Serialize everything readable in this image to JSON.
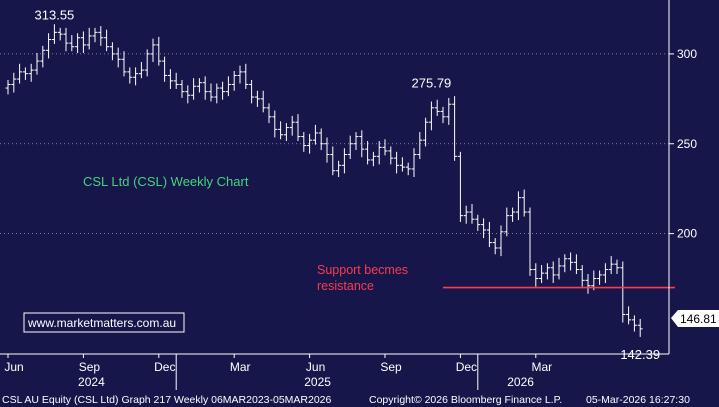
{
  "chart_data": {
    "type": "ohlc",
    "title": "CSL Ltd (CSL) Weekly Chart",
    "y_ticks": [
      200,
      250,
      300
    ],
    "ylim": [
      133,
      330
    ],
    "x_tick_labels": [
      "Jun",
      "Sep",
      "Dec",
      "Mar",
      "Jun",
      "Sep",
      "Dec",
      "Mar"
    ],
    "x_tick_weeks": [
      0,
      13,
      26,
      39,
      52,
      65,
      78,
      91
    ],
    "year_labels": [
      "2024",
      "2025",
      "2026"
    ],
    "year_label_weeks": [
      13,
      52,
      87
    ],
    "year_divider_weeks": [
      29,
      81
    ],
    "last_price": "146.81",
    "closes": [
      283,
      286,
      290,
      289,
      291,
      296,
      302,
      308,
      312,
      311,
      306,
      304,
      309,
      305,
      310,
      312,
      309,
      304,
      300,
      297,
      290,
      287,
      289,
      291,
      300,
      305,
      296,
      288,
      285,
      283,
      279,
      277,
      282,
      284,
      279,
      276,
      281,
      279,
      283,
      288,
      290,
      283,
      276,
      275,
      270,
      265,
      258,
      255,
      259,
      262,
      254,
      249,
      252,
      256,
      250,
      244,
      235,
      238,
      244,
      250,
      254,
      247,
      241,
      243,
      248,
      246,
      242,
      238,
      237,
      236,
      244,
      252,
      262,
      270,
      268,
      265,
      272,
      243,
      210,
      212,
      208,
      205,
      202,
      195,
      192,
      201,
      210,
      212,
      220,
      212,
      180,
      175,
      178,
      181,
      177,
      182,
      186,
      184,
      180,
      174,
      171,
      175,
      177,
      180,
      183,
      181,
      155,
      152,
      149,
      147
    ],
    "annotations": [
      {
        "text": "313.55",
        "week": 8,
        "price": 313.55,
        "position": "top"
      },
      {
        "text": "275.79",
        "week": 73,
        "price": 275.79,
        "position": "top"
      },
      {
        "text": "142.39",
        "week": 109,
        "price": 142.39,
        "position": "bottom"
      }
    ],
    "support_line": {
      "price": 170,
      "from_week": 75,
      "to_week": 115,
      "label_lines": [
        "Support becmes",
        "resistance"
      ],
      "color": "#ff3b4a"
    },
    "title_color": "#44d47a",
    "bar_color": "#ffffff",
    "background": "#16164a"
  },
  "watermark": "www.marketmatters.com.au",
  "footer": {
    "left": "CSL AU Equity (CSL Ltd) Graph 217 Weekly 06MAR2023-05MAR2026",
    "center": "Copyright© 2026 Bloomberg Finance L.P.",
    "right": "05-Mar-2026 16:27:30"
  }
}
